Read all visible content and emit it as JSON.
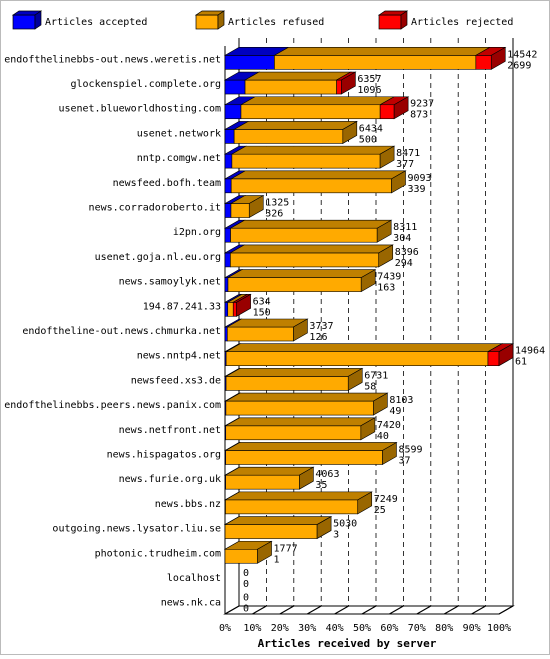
{
  "chart_data": {
    "type": "bar",
    "orientation": "horizontal",
    "stacked": true,
    "percent_scale": true,
    "xlabel": "Articles received by server",
    "x_ticks": [
      "0%",
      "10%",
      "20%",
      "30%",
      "40%",
      "50%",
      "60%",
      "70%",
      "80%",
      "90%",
      "100%"
    ],
    "legend": {
      "position": "top",
      "items": [
        {
          "label": "Articles accepted",
          "color": "#0000ff"
        },
        {
          "label": "Articles refused",
          "color": "#ffaa00"
        },
        {
          "label": "Articles rejected",
          "color": "#ff0000"
        }
      ]
    },
    "grid": true,
    "colors": {
      "accepted": "#0000ff",
      "refused": "#ffaa00",
      "rejected": "#ff0000"
    },
    "rows": [
      {
        "server": "endofthelinebbs-out.news.weretis.net",
        "total": 14542,
        "accepted": 2699,
        "refused": 11000,
        "rejected": 843
      },
      {
        "server": "glockenspiel.complete.org",
        "total": 6357,
        "accepted": 1096,
        "refused": 5000,
        "rejected": 261
      },
      {
        "server": "usenet.blueworldhosting.com",
        "total": 9237,
        "accepted": 873,
        "refused": 7600,
        "rejected": 764
      },
      {
        "server": "usenet.network",
        "total": 6434,
        "accepted": 500,
        "refused": 5934,
        "rejected": 0
      },
      {
        "server": "nntp.comgw.net",
        "total": 8471,
        "accepted": 377,
        "refused": 8094,
        "rejected": 0
      },
      {
        "server": "newsfeed.bofh.team",
        "total": 9093,
        "accepted": 339,
        "refused": 8754,
        "rejected": 0
      },
      {
        "server": "news.corradoroberto.it",
        "total": 1325,
        "accepted": 326,
        "refused": 999,
        "rejected": 0
      },
      {
        "server": "i2pn.org",
        "total": 8311,
        "accepted": 304,
        "refused": 8007,
        "rejected": 0
      },
      {
        "server": "usenet.goja.nl.eu.org",
        "total": 8396,
        "accepted": 294,
        "refused": 8102,
        "rejected": 0
      },
      {
        "server": "news.samoylyk.net",
        "total": 7439,
        "accepted": 163,
        "refused": 7276,
        "rejected": 0
      },
      {
        "server": "194.87.241.33",
        "total": 634,
        "accepted": 150,
        "refused": 300,
        "rejected": 184
      },
      {
        "server": "endoftheline-out.news.chmurka.net",
        "total": 3737,
        "accepted": 126,
        "refused": 3611,
        "rejected": 0
      },
      {
        "server": "news.nntp4.net",
        "total": 14964,
        "accepted": 61,
        "refused": 14300,
        "rejected": 603
      },
      {
        "server": "newsfeed.xs3.de",
        "total": 6731,
        "accepted": 58,
        "refused": 6673,
        "rejected": 0
      },
      {
        "server": "endofthelinebbs.peers.news.panix.com",
        "total": 8103,
        "accepted": 49,
        "refused": 8054,
        "rejected": 0
      },
      {
        "server": "news.netfront.net",
        "total": 7420,
        "accepted": 40,
        "refused": 7380,
        "rejected": 0
      },
      {
        "server": "news.hispagatos.org",
        "total": 8599,
        "accepted": 37,
        "refused": 8562,
        "rejected": 0
      },
      {
        "server": "news.furie.org.uk",
        "total": 4063,
        "accepted": 35,
        "refused": 4028,
        "rejected": 0
      },
      {
        "server": "news.bbs.nz",
        "total": 7249,
        "accepted": 25,
        "refused": 7224,
        "rejected": 0
      },
      {
        "server": "outgoing.news.lysator.liu.se",
        "total": 5030,
        "accepted": 3,
        "refused": 5027,
        "rejected": 0
      },
      {
        "server": "photonic.trudheim.com",
        "total": 1777,
        "accepted": 1,
        "refused": 1776,
        "rejected": 0
      },
      {
        "server": "localhost",
        "total": 0,
        "accepted": 0,
        "refused": 0,
        "rejected": 0
      },
      {
        "server": "news.nk.ca",
        "total": 0,
        "accepted": 0,
        "refused": 0,
        "rejected": 0
      }
    ]
  }
}
